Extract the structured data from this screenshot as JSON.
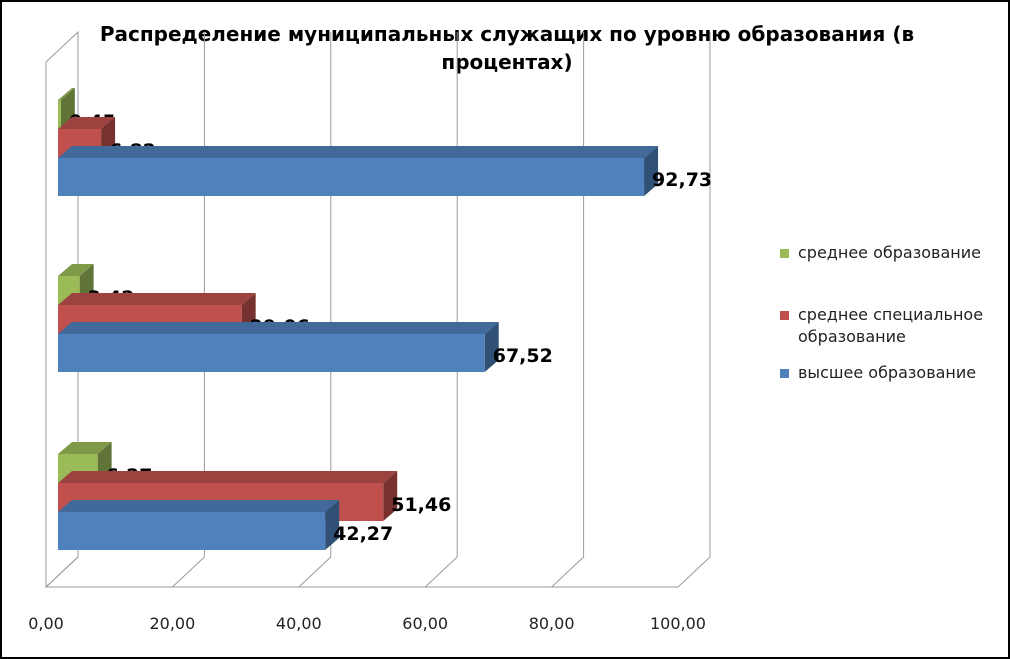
{
  "chart_data": {
    "type": "bar",
    "orientation": "horizontal",
    "title": "Распределение муниципальных служащих по уровню образования (в процентах)",
    "xlim": [
      0,
      100
    ],
    "xticks": [
      "0,00",
      "20,00",
      "40,00",
      "60,00",
      "80,00",
      "100,00"
    ],
    "grid": true,
    "legend_position": "right",
    "series": [
      {
        "name": "среднее образование",
        "color": "#9BBB59",
        "values": [
          6.27,
          3.42,
          0.45
        ],
        "labels": [
          "6,27",
          "3,42",
          "0,45"
        ]
      },
      {
        "name": "среднее специальное образование",
        "color": "#C0504D",
        "values": [
          51.46,
          29.06,
          6.82
        ],
        "labels": [
          "51,46",
          "29,06",
          "6,82"
        ]
      },
      {
        "name": "высшее образование",
        "color": "#4F81BD",
        "values": [
          42.27,
          67.52,
          92.73
        ],
        "labels": [
          "42,27",
          "67,52",
          "92,73"
        ]
      }
    ]
  }
}
